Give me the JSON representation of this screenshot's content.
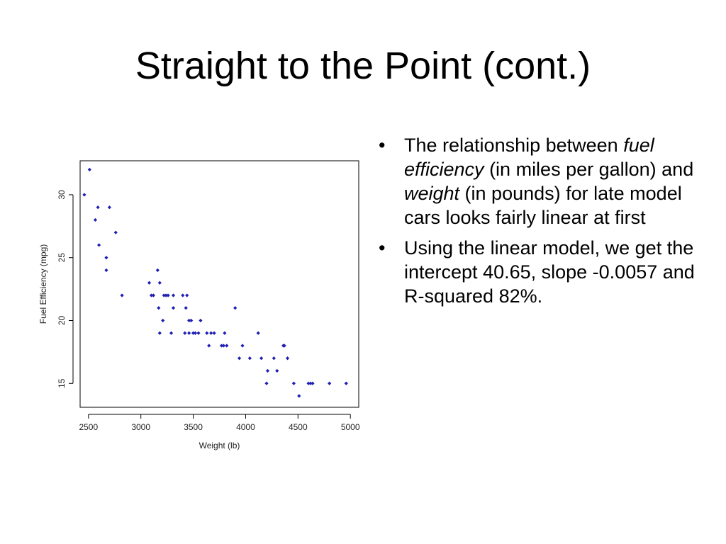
{
  "slide": {
    "title": "Straight to the Point (cont.)"
  },
  "bullets": [
    {
      "parts": [
        {
          "text": "The relationship between ",
          "italic": false
        },
        {
          "text": "fuel efficiency",
          "italic": true
        },
        {
          "text": " (in miles per gallon) and ",
          "italic": false
        },
        {
          "text": "weight",
          "italic": true
        },
        {
          "text": " (in pounds) for late model cars looks fairly linear at first",
          "italic": false
        }
      ]
    },
    {
      "parts": [
        {
          "text": "Using the linear model, we get the intercept 40.65, slope -0.0057 and R-squared 82%.",
          "italic": false
        }
      ]
    }
  ],
  "chart_data": {
    "type": "scatter",
    "title": "",
    "xlabel": "Weight (lb)",
    "ylabel": "Fuel Efficiency (mpg)",
    "xlim": [
      2420,
      5080
    ],
    "ylim": [
      13.1,
      32.7
    ],
    "xticks": [
      2500,
      3000,
      3500,
      4000,
      4500,
      5000
    ],
    "yticks": [
      15,
      20,
      25,
      30
    ],
    "grid": false,
    "point_color": "#1f1fb4",
    "points": [
      [
        2460,
        30
      ],
      [
        2510,
        32
      ],
      [
        2565,
        28
      ],
      [
        2590,
        29
      ],
      [
        2600,
        26
      ],
      [
        2670,
        25
      ],
      [
        2670,
        24
      ],
      [
        2700,
        29
      ],
      [
        2760,
        27
      ],
      [
        2820,
        22
      ],
      [
        3080,
        23
      ],
      [
        3100,
        22
      ],
      [
        3120,
        22
      ],
      [
        3160,
        24
      ],
      [
        3170,
        21
      ],
      [
        3180,
        23
      ],
      [
        3180,
        19
      ],
      [
        3210,
        20
      ],
      [
        3220,
        22
      ],
      [
        3240,
        22
      ],
      [
        3260,
        22
      ],
      [
        3290,
        19
      ],
      [
        3310,
        22
      ],
      [
        3310,
        21
      ],
      [
        3400,
        22
      ],
      [
        3420,
        19
      ],
      [
        3430,
        21
      ],
      [
        3440,
        22
      ],
      [
        3460,
        19
      ],
      [
        3460,
        20
      ],
      [
        3480,
        20
      ],
      [
        3500,
        19
      ],
      [
        3520,
        19
      ],
      [
        3550,
        19
      ],
      [
        3570,
        20
      ],
      [
        3630,
        19
      ],
      [
        3650,
        18
      ],
      [
        3670,
        19
      ],
      [
        3700,
        19
      ],
      [
        3770,
        18
      ],
      [
        3790,
        18
      ],
      [
        3800,
        19
      ],
      [
        3820,
        18
      ],
      [
        3900,
        21
      ],
      [
        3940,
        17
      ],
      [
        3970,
        18
      ],
      [
        4040,
        17
      ],
      [
        4120,
        19
      ],
      [
        4150,
        17
      ],
      [
        4200,
        15
      ],
      [
        4210,
        16
      ],
      [
        4270,
        17
      ],
      [
        4300,
        16
      ],
      [
        4360,
        18
      ],
      [
        4370,
        18
      ],
      [
        4400,
        17
      ],
      [
        4460,
        15
      ],
      [
        4510,
        14
      ],
      [
        4600,
        15
      ],
      [
        4620,
        15
      ],
      [
        4640,
        15
      ],
      [
        4800,
        15
      ],
      [
        4960,
        15
      ]
    ]
  }
}
